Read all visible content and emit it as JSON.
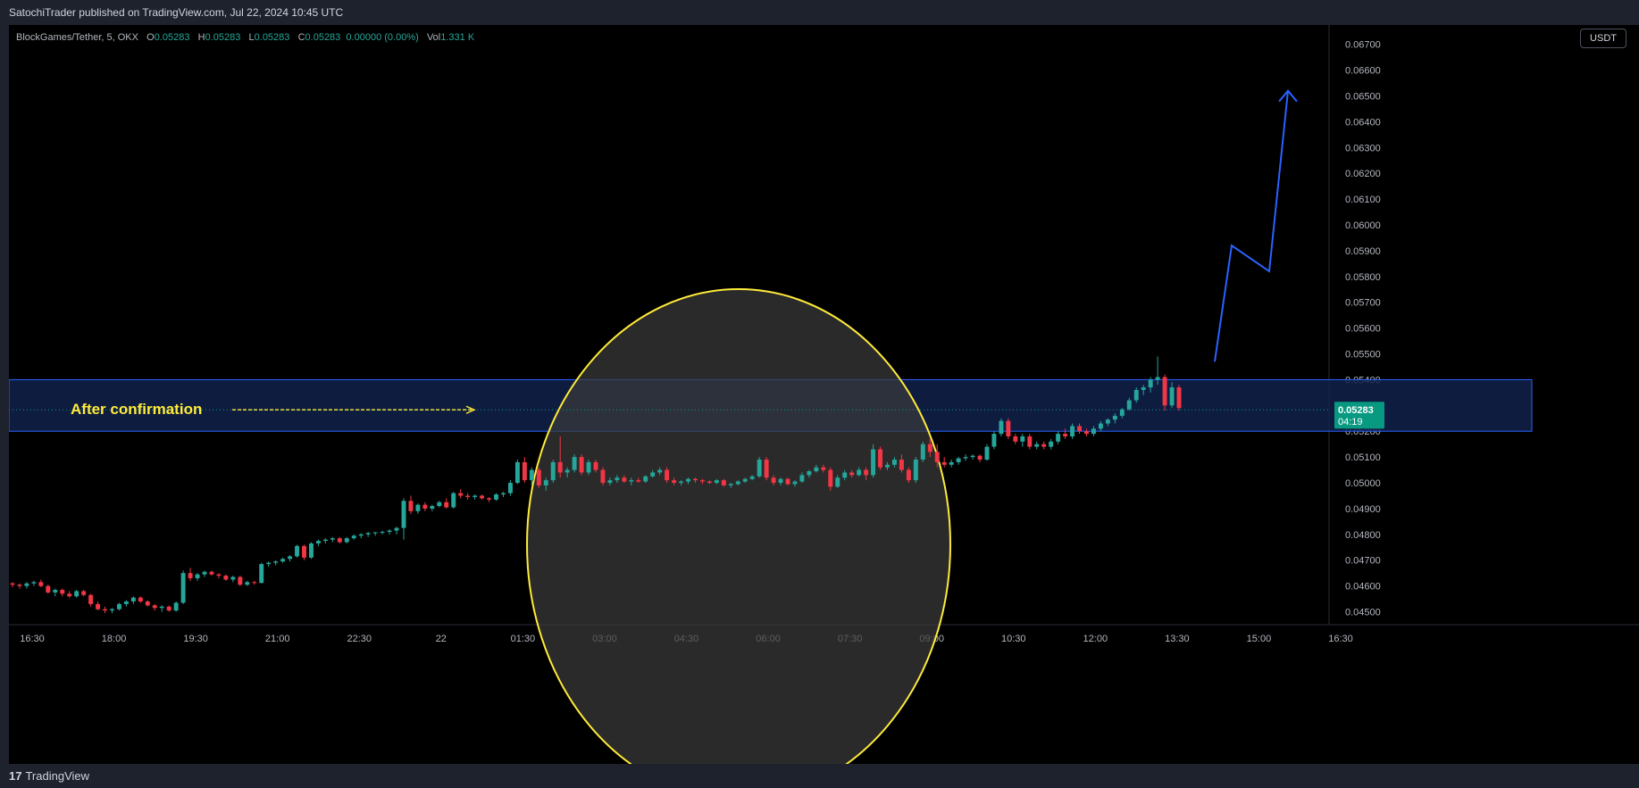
{
  "header": {
    "published": "SatochiTrader published on TradingView.com, Jul 22, 2024 10:45 UTC"
  },
  "legend": {
    "symbol": "BlockGames/Tether, 5, OKX",
    "o_label": "O",
    "o_value": "0.05283",
    "h_label": "H",
    "h_value": "0.05283",
    "l_label": "L",
    "l_value": "0.05283",
    "c_label": "C",
    "c_value": "0.05283",
    "change": "0.00000 (0.00%)",
    "vol_label": "Vol",
    "vol_value": "1.331 K"
  },
  "currency_button": "USDT",
  "footer": {
    "brand": "TradingView",
    "logo": "17"
  },
  "colors": {
    "up": "#26a69a",
    "down": "#f23645",
    "zone_fill": "#10214a",
    "zone_border": "#2962ff",
    "arrow": "#2962ff",
    "circle": "#ffeb3b",
    "annotation": "#ffeb3b",
    "price_tag": "#089981"
  },
  "chart_data": {
    "type": "candlestick",
    "title": "",
    "price_axis": {
      "ylim": [
        0.0445,
        0.06775
      ],
      "ticks": [
        "0.04500",
        "0.04600",
        "0.04700",
        "0.04800",
        "0.04900",
        "0.05000",
        "0.05100",
        "0.05200",
        "0.05300",
        "0.05400",
        "0.05500",
        "0.05600",
        "0.05700",
        "0.05800",
        "0.05900",
        "0.06000",
        "0.06100",
        "0.06200",
        "0.06300",
        "0.06400",
        "0.06500",
        "0.06600",
        "0.06700"
      ]
    },
    "time_axis": {
      "ticks": [
        "16:30",
        "18:00",
        "19:30",
        "21:00",
        "22:30",
        "22",
        "01:30",
        "03:00",
        "04:30",
        "06:00",
        "07:30",
        "09:00",
        "10:30",
        "12:00",
        "13:30",
        "15:00",
        "16:30"
      ]
    },
    "last_price": {
      "value": "0.05283",
      "countdown": "04:19"
    },
    "confirmation_zone": {
      "low": 0.052,
      "high": 0.054,
      "label": "After confirmation"
    },
    "projection_path": [
      [
        0.0547,
        0.0592
      ],
      [
        0.0592,
        0.0582
      ],
      [
        0.0582,
        0.0652
      ]
    ],
    "candles": [
      [
        0.0461,
        0.04615,
        0.04595,
        0.04605
      ],
      [
        0.04605,
        0.0461,
        0.0459,
        0.046
      ],
      [
        0.046,
        0.04615,
        0.0459,
        0.0461
      ],
      [
        0.0461,
        0.0462,
        0.046,
        0.04615
      ],
      [
        0.04615,
        0.04625,
        0.04595,
        0.046
      ],
      [
        0.046,
        0.04605,
        0.0457,
        0.04575
      ],
      [
        0.04575,
        0.0459,
        0.0456,
        0.04585
      ],
      [
        0.04585,
        0.0459,
        0.0456,
        0.0457
      ],
      [
        0.0457,
        0.0458,
        0.04555,
        0.0456
      ],
      [
        0.0456,
        0.04585,
        0.04555,
        0.0458
      ],
      [
        0.0458,
        0.04585,
        0.0456,
        0.04565
      ],
      [
        0.04565,
        0.0457,
        0.0452,
        0.0453
      ],
      [
        0.0453,
        0.0454,
        0.04505,
        0.0451
      ],
      [
        0.0451,
        0.0452,
        0.04495,
        0.04505
      ],
      [
        0.04505,
        0.04515,
        0.04495,
        0.0451
      ],
      [
        0.0451,
        0.04535,
        0.04505,
        0.0453
      ],
      [
        0.0453,
        0.04545,
        0.0452,
        0.0454
      ],
      [
        0.0454,
        0.0456,
        0.0453,
        0.04555
      ],
      [
        0.04555,
        0.0456,
        0.04535,
        0.0454
      ],
      [
        0.0454,
        0.04545,
        0.0452,
        0.04525
      ],
      [
        0.04525,
        0.0453,
        0.04505,
        0.04515
      ],
      [
        0.04515,
        0.04525,
        0.045,
        0.0452
      ],
      [
        0.0452,
        0.04525,
        0.045,
        0.04505
      ],
      [
        0.04505,
        0.0454,
        0.045,
        0.04535
      ],
      [
        0.04535,
        0.0466,
        0.0453,
        0.0465
      ],
      [
        0.0465,
        0.0467,
        0.0462,
        0.0463
      ],
      [
        0.0463,
        0.0465,
        0.0462,
        0.04645
      ],
      [
        0.04645,
        0.0466,
        0.04635,
        0.04655
      ],
      [
        0.04655,
        0.0466,
        0.0464,
        0.04645
      ],
      [
        0.04645,
        0.0465,
        0.0463,
        0.0464
      ],
      [
        0.0464,
        0.04645,
        0.0462,
        0.04625
      ],
      [
        0.04625,
        0.0464,
        0.04615,
        0.04635
      ],
      [
        0.04635,
        0.0464,
        0.046,
        0.04605
      ],
      [
        0.04605,
        0.0462,
        0.046,
        0.04615
      ],
      [
        0.04615,
        0.0462,
        0.04605,
        0.04612
      ],
      [
        0.04612,
        0.0469,
        0.0461,
        0.04685
      ],
      [
        0.04685,
        0.04695,
        0.04675,
        0.0469
      ],
      [
        0.0469,
        0.047,
        0.0468,
        0.04695
      ],
      [
        0.04695,
        0.0471,
        0.0469,
        0.04705
      ],
      [
        0.04705,
        0.0472,
        0.04695,
        0.04715
      ],
      [
        0.04715,
        0.0476,
        0.0471,
        0.04755
      ],
      [
        0.04755,
        0.0476,
        0.047,
        0.0471
      ],
      [
        0.0471,
        0.0477,
        0.04705,
        0.04765
      ],
      [
        0.04765,
        0.0478,
        0.04755,
        0.04775
      ],
      [
        0.04775,
        0.04785,
        0.04765,
        0.0478
      ],
      [
        0.0478,
        0.0479,
        0.0477,
        0.04785
      ],
      [
        0.04785,
        0.0479,
        0.04765,
        0.0477
      ],
      [
        0.0477,
        0.0479,
        0.04765,
        0.04785
      ],
      [
        0.04785,
        0.048,
        0.0478,
        0.04795
      ],
      [
        0.04795,
        0.04805,
        0.04785,
        0.048
      ],
      [
        0.048,
        0.0481,
        0.0479,
        0.04805
      ],
      [
        0.04805,
        0.0481,
        0.04795,
        0.04808
      ],
      [
        0.04808,
        0.04815,
        0.048,
        0.0481
      ],
      [
        0.0481,
        0.0482,
        0.048,
        0.04815
      ],
      [
        0.04815,
        0.0483,
        0.048,
        0.04825
      ],
      [
        0.04825,
        0.0494,
        0.0478,
        0.0493
      ],
      [
        0.0493,
        0.0495,
        0.0488,
        0.0489
      ],
      [
        0.0489,
        0.0492,
        0.0488,
        0.04915
      ],
      [
        0.04915,
        0.04925,
        0.0489,
        0.049
      ],
      [
        0.049,
        0.04915,
        0.0489,
        0.0491
      ],
      [
        0.0491,
        0.0493,
        0.04905,
        0.04925
      ],
      [
        0.04925,
        0.0494,
        0.049,
        0.04905
      ],
      [
        0.04905,
        0.04965,
        0.049,
        0.0496
      ],
      [
        0.0496,
        0.04975,
        0.0494,
        0.0495
      ],
      [
        0.0495,
        0.0496,
        0.04935,
        0.04945
      ],
      [
        0.04945,
        0.04955,
        0.04935,
        0.0495
      ],
      [
        0.0495,
        0.04955,
        0.04935,
        0.0494
      ],
      [
        0.0494,
        0.04945,
        0.04925,
        0.04935
      ],
      [
        0.04935,
        0.0496,
        0.0493,
        0.04955
      ],
      [
        0.04955,
        0.04965,
        0.04945,
        0.0496
      ],
      [
        0.0496,
        0.0501,
        0.0495,
        0.05
      ],
      [
        0.05,
        0.0509,
        0.04995,
        0.0508
      ],
      [
        0.0508,
        0.051,
        0.05,
        0.0501
      ],
      [
        0.0501,
        0.0506,
        0.0499,
        0.0505
      ],
      [
        0.0505,
        0.0506,
        0.0498,
        0.0499
      ],
      [
        0.0499,
        0.0502,
        0.0497,
        0.0501
      ],
      [
        0.0501,
        0.0509,
        0.05,
        0.0508
      ],
      [
        0.0508,
        0.0518,
        0.0502,
        0.0504
      ],
      [
        0.0504,
        0.0506,
        0.0502,
        0.0505
      ],
      [
        0.0505,
        0.0511,
        0.0504,
        0.051
      ],
      [
        0.051,
        0.0511,
        0.0503,
        0.0504
      ],
      [
        0.0504,
        0.0509,
        0.0503,
        0.0508
      ],
      [
        0.0508,
        0.0509,
        0.0504,
        0.0505
      ],
      [
        0.0505,
        0.0506,
        0.0499,
        0.05
      ],
      [
        0.05,
        0.0502,
        0.0499,
        0.0501
      ],
      [
        0.0501,
        0.0503,
        0.05,
        0.0502
      ],
      [
        0.0502,
        0.0503,
        0.05,
        0.05005
      ],
      [
        0.05005,
        0.0502,
        0.0499,
        0.0501
      ],
      [
        0.0501,
        0.0502,
        0.05,
        0.05005
      ],
      [
        0.05005,
        0.0503,
        0.05,
        0.05025
      ],
      [
        0.05025,
        0.0505,
        0.0502,
        0.0504
      ],
      [
        0.0504,
        0.0506,
        0.0503,
        0.0505
      ],
      [
        0.0505,
        0.0506,
        0.05,
        0.0501
      ],
      [
        0.0501,
        0.0502,
        0.0499,
        0.05
      ],
      [
        0.05,
        0.0501,
        0.0499,
        0.05005
      ],
      [
        0.05005,
        0.0502,
        0.04995,
        0.05015
      ],
      [
        0.05015,
        0.0502,
        0.05,
        0.0501
      ],
      [
        0.0501,
        0.05015,
        0.04995,
        0.05005
      ],
      [
        0.05005,
        0.0501,
        0.04995,
        0.05
      ],
      [
        0.05,
        0.05015,
        0.04995,
        0.0501
      ],
      [
        0.0501,
        0.05015,
        0.04985,
        0.0499
      ],
      [
        0.0499,
        0.05,
        0.0498,
        0.04995
      ],
      [
        0.04995,
        0.0501,
        0.0499,
        0.05005
      ],
      [
        0.05005,
        0.0502,
        0.05,
        0.05015
      ],
      [
        0.05015,
        0.0503,
        0.0501,
        0.05025
      ],
      [
        0.05025,
        0.051,
        0.0502,
        0.0509
      ],
      [
        0.0509,
        0.051,
        0.0501,
        0.0502
      ],
      [
        0.0502,
        0.0503,
        0.0499,
        0.05
      ],
      [
        0.05,
        0.0502,
        0.0499,
        0.05015
      ],
      [
        0.05015,
        0.0502,
        0.0499,
        0.04995
      ],
      [
        0.04995,
        0.0501,
        0.04985,
        0.05005
      ],
      [
        0.05005,
        0.0504,
        0.05,
        0.0503
      ],
      [
        0.0503,
        0.0505,
        0.0502,
        0.05045
      ],
      [
        0.05045,
        0.0507,
        0.0504,
        0.0506
      ],
      [
        0.0506,
        0.0507,
        0.0504,
        0.0505
      ],
      [
        0.0505,
        0.0506,
        0.0497,
        0.04985
      ],
      [
        0.04985,
        0.0503,
        0.0498,
        0.0502
      ],
      [
        0.0502,
        0.0505,
        0.0501,
        0.0504
      ],
      [
        0.0504,
        0.0505,
        0.0502,
        0.0503
      ],
      [
        0.0503,
        0.0506,
        0.05025,
        0.0505
      ],
      [
        0.0505,
        0.0506,
        0.0501,
        0.0503
      ],
      [
        0.0503,
        0.0515,
        0.0502,
        0.0513
      ],
      [
        0.0513,
        0.0514,
        0.0505,
        0.0506
      ],
      [
        0.0506,
        0.0508,
        0.0505,
        0.0507
      ],
      [
        0.0507,
        0.051,
        0.0506,
        0.0509
      ],
      [
        0.0509,
        0.0511,
        0.0504,
        0.0505
      ],
      [
        0.0505,
        0.0506,
        0.05,
        0.0501
      ],
      [
        0.0501,
        0.051,
        0.05,
        0.0509
      ],
      [
        0.0509,
        0.0516,
        0.0508,
        0.0515
      ],
      [
        0.0515,
        0.0517,
        0.051,
        0.0512
      ],
      [
        0.0512,
        0.0515,
        0.0506,
        0.0508
      ],
      [
        0.0508,
        0.051,
        0.0506,
        0.0507
      ],
      [
        0.0507,
        0.0509,
        0.0506,
        0.0508
      ],
      [
        0.0508,
        0.051,
        0.0507,
        0.05095
      ],
      [
        0.05095,
        0.0511,
        0.05085,
        0.051
      ],
      [
        0.051,
        0.0511,
        0.0509,
        0.05105
      ],
      [
        0.05105,
        0.0511,
        0.0508,
        0.0509
      ],
      [
        0.0509,
        0.0515,
        0.05085,
        0.0514
      ],
      [
        0.0514,
        0.052,
        0.0513,
        0.0519
      ],
      [
        0.0519,
        0.0525,
        0.0518,
        0.0524
      ],
      [
        0.0524,
        0.0525,
        0.0517,
        0.0518
      ],
      [
        0.0518,
        0.0519,
        0.0515,
        0.0516
      ],
      [
        0.0516,
        0.0519,
        0.0514,
        0.0518
      ],
      [
        0.0518,
        0.0519,
        0.0513,
        0.0514
      ],
      [
        0.0514,
        0.0516,
        0.0513,
        0.0515
      ],
      [
        0.0515,
        0.0516,
        0.0513,
        0.0514
      ],
      [
        0.0514,
        0.0517,
        0.0513,
        0.0516
      ],
      [
        0.0516,
        0.052,
        0.0515,
        0.0519
      ],
      [
        0.0519,
        0.0521,
        0.0517,
        0.0518
      ],
      [
        0.0518,
        0.0523,
        0.0517,
        0.0522
      ],
      [
        0.0522,
        0.0523,
        0.0519,
        0.052
      ],
      [
        0.052,
        0.0521,
        0.0518,
        0.0519
      ],
      [
        0.0519,
        0.0522,
        0.0518,
        0.0521
      ],
      [
        0.0521,
        0.0524,
        0.052,
        0.0523
      ],
      [
        0.0523,
        0.0525,
        0.0522,
        0.05245
      ],
      [
        0.05245,
        0.0527,
        0.0523,
        0.0526
      ],
      [
        0.0526,
        0.0529,
        0.0525,
        0.05285
      ],
      [
        0.05285,
        0.0533,
        0.0528,
        0.0532
      ],
      [
        0.0532,
        0.0537,
        0.0531,
        0.0536
      ],
      [
        0.0536,
        0.0538,
        0.0534,
        0.0537
      ],
      [
        0.0537,
        0.0541,
        0.0535,
        0.054
      ],
      [
        0.054,
        0.0549,
        0.0538,
        0.0541
      ],
      [
        0.0541,
        0.0542,
        0.0528,
        0.053
      ],
      [
        0.053,
        0.0539,
        0.0529,
        0.0537
      ],
      [
        0.0537,
        0.0538,
        0.0528,
        0.0529
      ]
    ]
  }
}
